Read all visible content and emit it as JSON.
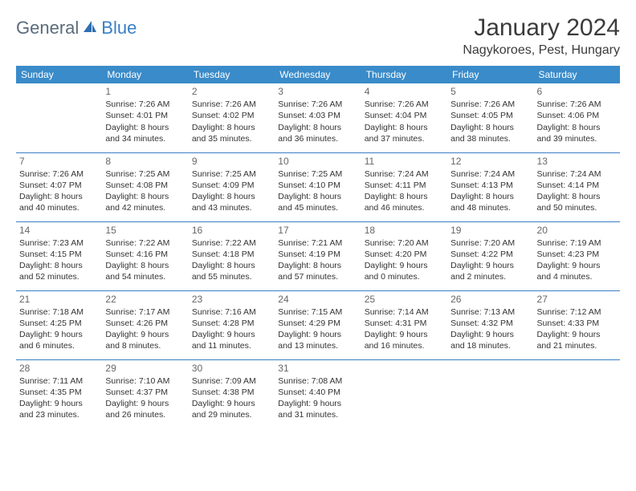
{
  "brand": {
    "part1": "General",
    "part2": "Blue"
  },
  "title": "January 2024",
  "location": "Nagykoroes, Pest, Hungary",
  "weekday_header_bg": "#3a8bc9",
  "weekday_header_fg": "#ffffff",
  "rule_color": "#3a7fc4",
  "weekdays": [
    "Sunday",
    "Monday",
    "Tuesday",
    "Wednesday",
    "Thursday",
    "Friday",
    "Saturday"
  ],
  "weeks": [
    [
      null,
      {
        "d": "1",
        "sr": "Sunrise: 7:26 AM",
        "ss": "Sunset: 4:01 PM",
        "dl1": "Daylight: 8 hours",
        "dl2": "and 34 minutes."
      },
      {
        "d": "2",
        "sr": "Sunrise: 7:26 AM",
        "ss": "Sunset: 4:02 PM",
        "dl1": "Daylight: 8 hours",
        "dl2": "and 35 minutes."
      },
      {
        "d": "3",
        "sr": "Sunrise: 7:26 AM",
        "ss": "Sunset: 4:03 PM",
        "dl1": "Daylight: 8 hours",
        "dl2": "and 36 minutes."
      },
      {
        "d": "4",
        "sr": "Sunrise: 7:26 AM",
        "ss": "Sunset: 4:04 PM",
        "dl1": "Daylight: 8 hours",
        "dl2": "and 37 minutes."
      },
      {
        "d": "5",
        "sr": "Sunrise: 7:26 AM",
        "ss": "Sunset: 4:05 PM",
        "dl1": "Daylight: 8 hours",
        "dl2": "and 38 minutes."
      },
      {
        "d": "6",
        "sr": "Sunrise: 7:26 AM",
        "ss": "Sunset: 4:06 PM",
        "dl1": "Daylight: 8 hours",
        "dl2": "and 39 minutes."
      }
    ],
    [
      {
        "d": "7",
        "sr": "Sunrise: 7:26 AM",
        "ss": "Sunset: 4:07 PM",
        "dl1": "Daylight: 8 hours",
        "dl2": "and 40 minutes."
      },
      {
        "d": "8",
        "sr": "Sunrise: 7:25 AM",
        "ss": "Sunset: 4:08 PM",
        "dl1": "Daylight: 8 hours",
        "dl2": "and 42 minutes."
      },
      {
        "d": "9",
        "sr": "Sunrise: 7:25 AM",
        "ss": "Sunset: 4:09 PM",
        "dl1": "Daylight: 8 hours",
        "dl2": "and 43 minutes."
      },
      {
        "d": "10",
        "sr": "Sunrise: 7:25 AM",
        "ss": "Sunset: 4:10 PM",
        "dl1": "Daylight: 8 hours",
        "dl2": "and 45 minutes."
      },
      {
        "d": "11",
        "sr": "Sunrise: 7:24 AM",
        "ss": "Sunset: 4:11 PM",
        "dl1": "Daylight: 8 hours",
        "dl2": "and 46 minutes."
      },
      {
        "d": "12",
        "sr": "Sunrise: 7:24 AM",
        "ss": "Sunset: 4:13 PM",
        "dl1": "Daylight: 8 hours",
        "dl2": "and 48 minutes."
      },
      {
        "d": "13",
        "sr": "Sunrise: 7:24 AM",
        "ss": "Sunset: 4:14 PM",
        "dl1": "Daylight: 8 hours",
        "dl2": "and 50 minutes."
      }
    ],
    [
      {
        "d": "14",
        "sr": "Sunrise: 7:23 AM",
        "ss": "Sunset: 4:15 PM",
        "dl1": "Daylight: 8 hours",
        "dl2": "and 52 minutes."
      },
      {
        "d": "15",
        "sr": "Sunrise: 7:22 AM",
        "ss": "Sunset: 4:16 PM",
        "dl1": "Daylight: 8 hours",
        "dl2": "and 54 minutes."
      },
      {
        "d": "16",
        "sr": "Sunrise: 7:22 AM",
        "ss": "Sunset: 4:18 PM",
        "dl1": "Daylight: 8 hours",
        "dl2": "and 55 minutes."
      },
      {
        "d": "17",
        "sr": "Sunrise: 7:21 AM",
        "ss": "Sunset: 4:19 PM",
        "dl1": "Daylight: 8 hours",
        "dl2": "and 57 minutes."
      },
      {
        "d": "18",
        "sr": "Sunrise: 7:20 AM",
        "ss": "Sunset: 4:20 PM",
        "dl1": "Daylight: 9 hours",
        "dl2": "and 0 minutes."
      },
      {
        "d": "19",
        "sr": "Sunrise: 7:20 AM",
        "ss": "Sunset: 4:22 PM",
        "dl1": "Daylight: 9 hours",
        "dl2": "and 2 minutes."
      },
      {
        "d": "20",
        "sr": "Sunrise: 7:19 AM",
        "ss": "Sunset: 4:23 PM",
        "dl1": "Daylight: 9 hours",
        "dl2": "and 4 minutes."
      }
    ],
    [
      {
        "d": "21",
        "sr": "Sunrise: 7:18 AM",
        "ss": "Sunset: 4:25 PM",
        "dl1": "Daylight: 9 hours",
        "dl2": "and 6 minutes."
      },
      {
        "d": "22",
        "sr": "Sunrise: 7:17 AM",
        "ss": "Sunset: 4:26 PM",
        "dl1": "Daylight: 9 hours",
        "dl2": "and 8 minutes."
      },
      {
        "d": "23",
        "sr": "Sunrise: 7:16 AM",
        "ss": "Sunset: 4:28 PM",
        "dl1": "Daylight: 9 hours",
        "dl2": "and 11 minutes."
      },
      {
        "d": "24",
        "sr": "Sunrise: 7:15 AM",
        "ss": "Sunset: 4:29 PM",
        "dl1": "Daylight: 9 hours",
        "dl2": "and 13 minutes."
      },
      {
        "d": "25",
        "sr": "Sunrise: 7:14 AM",
        "ss": "Sunset: 4:31 PM",
        "dl1": "Daylight: 9 hours",
        "dl2": "and 16 minutes."
      },
      {
        "d": "26",
        "sr": "Sunrise: 7:13 AM",
        "ss": "Sunset: 4:32 PM",
        "dl1": "Daylight: 9 hours",
        "dl2": "and 18 minutes."
      },
      {
        "d": "27",
        "sr": "Sunrise: 7:12 AM",
        "ss": "Sunset: 4:33 PM",
        "dl1": "Daylight: 9 hours",
        "dl2": "and 21 minutes."
      }
    ],
    [
      {
        "d": "28",
        "sr": "Sunrise: 7:11 AM",
        "ss": "Sunset: 4:35 PM",
        "dl1": "Daylight: 9 hours",
        "dl2": "and 23 minutes."
      },
      {
        "d": "29",
        "sr": "Sunrise: 7:10 AM",
        "ss": "Sunset: 4:37 PM",
        "dl1": "Daylight: 9 hours",
        "dl2": "and 26 minutes."
      },
      {
        "d": "30",
        "sr": "Sunrise: 7:09 AM",
        "ss": "Sunset: 4:38 PM",
        "dl1": "Daylight: 9 hours",
        "dl2": "and 29 minutes."
      },
      {
        "d": "31",
        "sr": "Sunrise: 7:08 AM",
        "ss": "Sunset: 4:40 PM",
        "dl1": "Daylight: 9 hours",
        "dl2": "and 31 minutes."
      },
      null,
      null,
      null
    ]
  ]
}
